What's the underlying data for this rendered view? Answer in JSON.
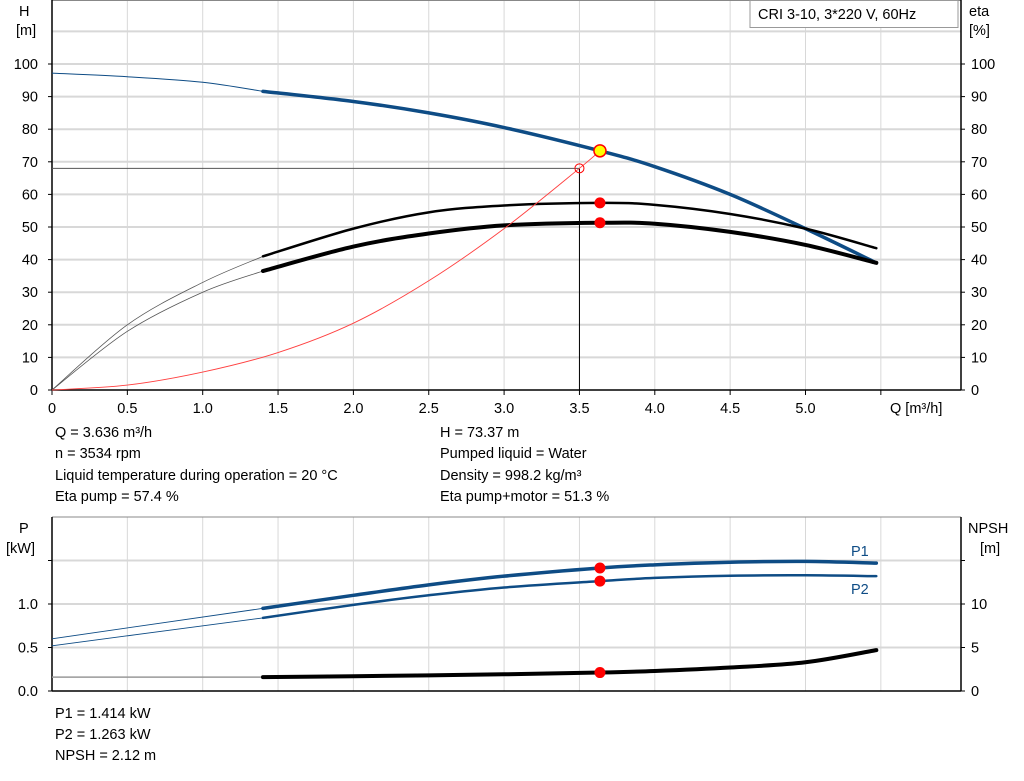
{
  "chart_data": [
    {
      "type": "line",
      "legend_box": "CRI 3-10, 3*220 V, 60Hz",
      "xlabel": "Q [m³/h]",
      "ylabel_left": [
        "H",
        "[m]"
      ],
      "ylabel_right": [
        "eta",
        "[%]"
      ],
      "xlim": [
        0,
        6.0
      ],
      "ylim": [
        0,
        120
      ],
      "xticks": [
        "0",
        "0.5",
        "1.0",
        "1.5",
        "2.0",
        "2.5",
        "3.0",
        "3.5",
        "4.0",
        "4.5",
        "5.0"
      ],
      "yticks": [
        "0",
        "10",
        "20",
        "30",
        "40",
        "50",
        "60",
        "70",
        "80",
        "90",
        "100"
      ],
      "grid": true,
      "series": [
        {
          "key": "H",
          "color": "#0e4c85",
          "thin": [
            [
              0,
              97.2
            ],
            [
              0.5,
              96.1
            ],
            [
              1.0,
              94.4
            ],
            [
              1.4,
              91.6
            ]
          ],
          "thick": [
            [
              1.4,
              91.6
            ],
            [
              2.0,
              88.5
            ],
            [
              2.5,
              85.0
            ],
            [
              3.0,
              80.5
            ],
            [
              3.636,
              73.37
            ],
            [
              4.0,
              68.5
            ],
            [
              4.5,
              60.0
            ],
            [
              5.0,
              49.5
            ],
            [
              5.47,
              39.0
            ]
          ]
        },
        {
          "key": "eta_pump",
          "color": "#000000",
          "thin": [
            [
              0,
              0
            ],
            [
              0.5,
              20
            ],
            [
              1.0,
              33
            ],
            [
              1.4,
              41
            ]
          ],
          "thick": [
            [
              1.4,
              41
            ],
            [
              2.0,
              49.5
            ],
            [
              2.5,
              54.5
            ],
            [
              3.0,
              56.6
            ],
            [
              3.636,
              57.4
            ],
            [
              4.0,
              56.8
            ],
            [
              4.5,
              54
            ],
            [
              5.0,
              49.5
            ],
            [
              5.47,
              43.5
            ]
          ]
        },
        {
          "key": "eta_pump_motor",
          "color": "#000000",
          "thin": [
            [
              0,
              0
            ],
            [
              0.5,
              18
            ],
            [
              1.0,
              30
            ],
            [
              1.4,
              36.5
            ]
          ],
          "thick": [
            [
              1.4,
              36.5
            ],
            [
              2.0,
              44
            ],
            [
              2.5,
              48
            ],
            [
              3.0,
              50.5
            ],
            [
              3.636,
              51.3
            ],
            [
              4.0,
              51
            ],
            [
              4.5,
              48.5
            ],
            [
              5.0,
              44.5
            ],
            [
              5.47,
              39
            ]
          ]
        },
        {
          "key": "system_curve",
          "color": "#ff4040",
          "thin": [
            [
              0,
              0
            ],
            [
              0.5,
              1.5
            ],
            [
              1.0,
              5.5
            ],
            [
              1.5,
              11.5
            ],
            [
              2.0,
              20.5
            ],
            [
              2.5,
              33.5
            ],
            [
              3.0,
              49.5
            ],
            [
              3.5,
              68
            ],
            [
              3.636,
              73.37
            ]
          ]
        }
      ],
      "duty_point": {
        "Q": 3.636,
        "H": 73.37,
        "eta_pump": 57.4,
        "eta_pump_motor": 51.3
      },
      "required_point": {
        "Q": 3.5,
        "H": 68
      },
      "colors": {
        "marker": "#ff0000",
        "duty_fill": "#ffff00",
        "grid": "#d8d8d8"
      }
    },
    {
      "type": "line",
      "ylabel_left": [
        "P",
        "[kW]"
      ],
      "ylabel_right": [
        "NPSH",
        "[m]"
      ],
      "xlim": [
        0,
        6.0
      ],
      "ylim": [
        0,
        1.9
      ],
      "yticks_left": [
        "0.0",
        "0.5",
        "1.0",
        ""
      ],
      "yticks_right": [
        "0",
        "5",
        "10",
        ""
      ],
      "grid": true,
      "series": [
        {
          "key": "P1",
          "name": "P1",
          "unit": "kW",
          "color": "#0e4c85",
          "thin": [
            [
              0,
              0.6
            ],
            [
              1.4,
              0.95
            ]
          ],
          "thick": [
            [
              1.4,
              0.95
            ],
            [
              2.0,
              1.1
            ],
            [
              2.5,
              1.22
            ],
            [
              3.0,
              1.32
            ],
            [
              3.636,
              1.414
            ],
            [
              4.0,
              1.45
            ],
            [
              4.5,
              1.48
            ],
            [
              5.0,
              1.49
            ],
            [
              5.47,
              1.47
            ]
          ]
        },
        {
          "key": "P2",
          "name": "P2",
          "unit": "kW",
          "color": "#0e4c85",
          "thin": [
            [
              0,
              0.52
            ],
            [
              1.4,
              0.84
            ]
          ],
          "thick": [
            [
              1.4,
              0.84
            ],
            [
              2.0,
              0.99
            ],
            [
              2.5,
              1.1
            ],
            [
              3.0,
              1.19
            ],
            [
              3.636,
              1.263
            ],
            [
              4.0,
              1.3
            ],
            [
              4.5,
              1.325
            ],
            [
              5.0,
              1.33
            ],
            [
              5.47,
              1.32
            ]
          ]
        },
        {
          "key": "NPSH",
          "unit": "m",
          "color": "#000000",
          "thin": [
            [
              0,
              1.6
            ],
            [
              1.4,
              1.6
            ]
          ],
          "thick": [
            [
              1.4,
              1.6
            ],
            [
              2.0,
              1.7
            ],
            [
              2.5,
              1.8
            ],
            [
              3.0,
              1.92
            ],
            [
              3.636,
              2.12
            ],
            [
              4.0,
              2.3
            ],
            [
              4.5,
              2.7
            ],
            [
              5.0,
              3.3
            ],
            [
              5.47,
              4.7
            ]
          ]
        }
      ],
      "duty_point": {
        "Q": 3.636,
        "P1": 1.414,
        "P2": 1.263,
        "NPSH": 2.12
      }
    }
  ],
  "info_top_left": [
    "Q = 3.636 m³/h",
    "n = 3534 rpm",
    "Liquid temperature during operation = 20 °C",
    "Eta pump = 57.4 %"
  ],
  "info_top_right": [
    "H = 73.37 m",
    "Pumped liquid = Water",
    "Density = 998.2 kg/m³",
    "Eta pump+motor = 51.3 %"
  ],
  "info_bottom": [
    "P1 = 1.414 kW",
    "P2 = 1.263 kW",
    "NPSH = 2.12 m"
  ]
}
